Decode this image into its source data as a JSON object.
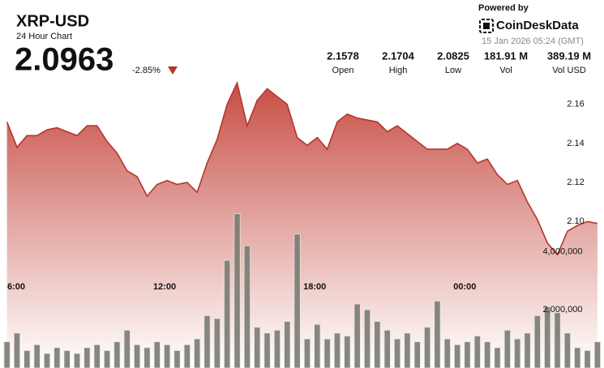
{
  "header": {
    "title": "XRP-USD",
    "subtitle": "24 Hour Chart",
    "price": "2.0963",
    "change": "-2.85%",
    "stats": [
      {
        "value": "2.1578",
        "label": "Open"
      },
      {
        "value": "2.1704",
        "label": "High"
      },
      {
        "value": "2.0825",
        "label": "Low"
      },
      {
        "value": "181.91 M",
        "label": "Vol"
      },
      {
        "value": "389.19 M",
        "label": "Vol USD"
      }
    ]
  },
  "branding": {
    "powered_by": "Powered by",
    "brand": "CoinDeskData",
    "timestamp": "15 Jan 2026 05:24 (GMT)"
  },
  "chart_data": {
    "type": "line",
    "color": "#b5352c",
    "x": [
      5.7,
      6.1,
      6.5,
      6.9,
      7.3,
      7.7,
      8.1,
      8.5,
      8.9,
      9.3,
      9.7,
      10.1,
      10.5,
      10.9,
      11.3,
      11.7,
      12.1,
      12.5,
      12.9,
      13.3,
      13.7,
      14.1,
      14.5,
      14.9,
      15.3,
      15.7,
      16.1,
      16.5,
      16.9,
      17.3,
      17.7,
      18.1,
      18.5,
      18.9,
      19.3,
      19.7,
      20.1,
      20.5,
      20.9,
      21.3,
      21.7,
      22.1,
      22.5,
      22.9,
      23.3,
      23.7,
      24.1,
      24.5,
      24.9,
      25.3,
      25.7,
      26.1,
      26.5,
      26.9,
      27.3,
      27.7,
      28.1,
      28.5,
      28.9,
      29.3
    ],
    "values": [
      2.151,
      2.138,
      2.144,
      2.144,
      2.147,
      2.148,
      2.146,
      2.144,
      2.149,
      2.149,
      2.141,
      2.135,
      2.126,
      2.123,
      2.113,
      2.119,
      2.121,
      2.119,
      2.12,
      2.115,
      2.13,
      2.142,
      2.16,
      2.171,
      2.149,
      2.162,
      2.168,
      2.164,
      2.16,
      2.143,
      2.139,
      2.143,
      2.137,
      2.151,
      2.155,
      2.153,
      2.152,
      2.151,
      2.146,
      2.149,
      2.145,
      2.141,
      2.137,
      2.137,
      2.137,
      2.14,
      2.137,
      2.13,
      2.132,
      2.124,
      2.119,
      2.121,
      2.11,
      2.101,
      2.089,
      2.083,
      2.095,
      2.098,
      2.1,
      2.099
    ],
    "volume": {
      "type": "bar",
      "axis": "y2",
      "color": "#7b7b74",
      "values": [
        900000,
        1200000,
        600000,
        800000,
        500000,
        700000,
        600000,
        500000,
        700000,
        800000,
        600000,
        900000,
        1300000,
        800000,
        700000,
        900000,
        800000,
        600000,
        800000,
        1000000,
        1800000,
        1700000,
        3700000,
        5300000,
        4200000,
        1400000,
        1200000,
        1300000,
        1600000,
        4600000,
        1000000,
        1500000,
        1000000,
        1200000,
        1100000,
        2200000,
        2000000,
        1600000,
        1300000,
        1000000,
        1200000,
        900000,
        1400000,
        2300000,
        1000000,
        800000,
        900000,
        1100000,
        900000,
        700000,
        1300000,
        1000000,
        1200000,
        1800000,
        2100000,
        1900000,
        1200000,
        700000,
        600000,
        900000
      ]
    },
    "xlim": [
      5.68,
      29.4
    ],
    "ylim": [
      2.025,
      2.174
    ],
    "y2lim": [
      0,
      10000000
    ],
    "xticks": [
      {
        "value": 6,
        "label": "6:00"
      },
      {
        "value": 12,
        "label": "12:00"
      },
      {
        "value": 18,
        "label": "18:00"
      },
      {
        "value": 24,
        "label": "00:00"
      }
    ],
    "yticks": [
      {
        "value": 2.1,
        "label": "2.10"
      },
      2.12,
      2.14,
      {
        "value": 2.16,
        "label": "2.16"
      }
    ],
    "y2ticks": [
      {
        "value": 2000000,
        "label": "2,000,000"
      },
      {
        "value": 4000000,
        "label": "4,000,000"
      }
    ]
  }
}
